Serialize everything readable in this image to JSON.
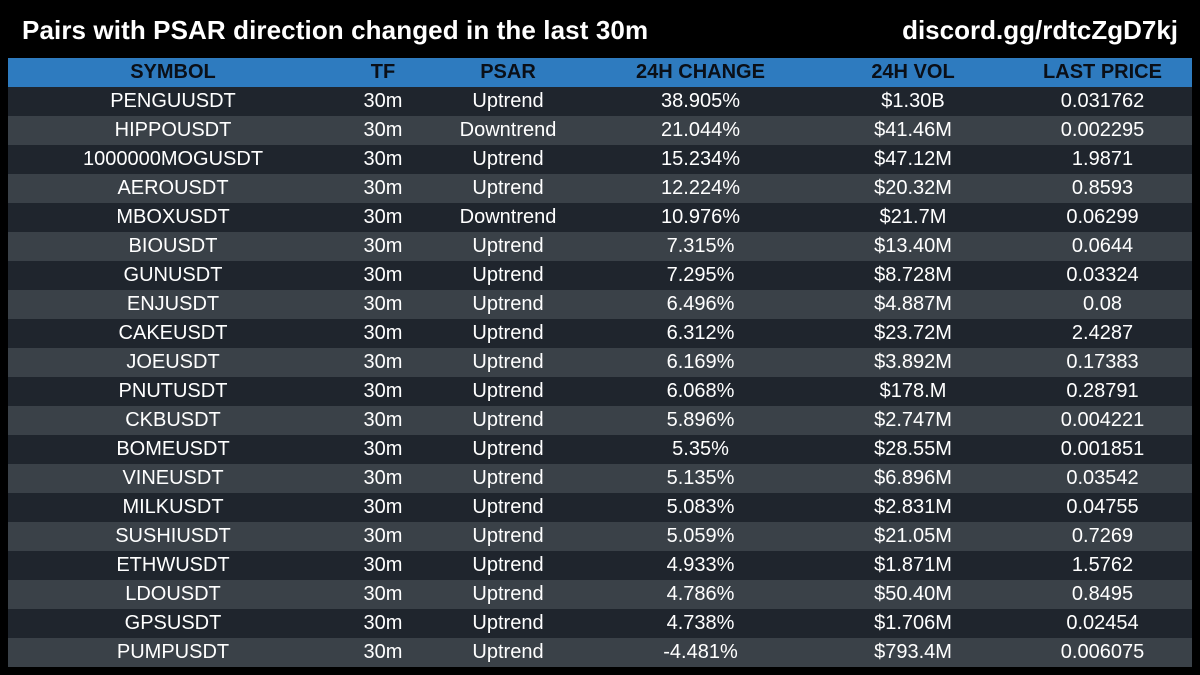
{
  "header": {
    "title": "Pairs with PSAR direction changed in the last 30m",
    "discord": "discord.gg/rdtcZgD7kj"
  },
  "table": {
    "columns": [
      "SYMBOL",
      "TF",
      "PSAR",
      "24H CHANGE",
      "24H VOL",
      "LAST PRICE"
    ],
    "rows": [
      [
        "PENGUUSDT",
        "30m",
        "Uptrend",
        "38.905%",
        "$1.30B",
        "0.031762"
      ],
      [
        "HIPPOUSDT",
        "30m",
        "Downtrend",
        "21.044%",
        "$41.46M",
        "0.002295"
      ],
      [
        "1000000MOGUSDT",
        "30m",
        "Uptrend",
        "15.234%",
        "$47.12M",
        "1.9871"
      ],
      [
        "AEROUSDT",
        "30m",
        "Uptrend",
        "12.224%",
        "$20.32M",
        "0.8593"
      ],
      [
        "MBOXUSDT",
        "30m",
        "Downtrend",
        "10.976%",
        "$21.7M",
        "0.06299"
      ],
      [
        "BIOUSDT",
        "30m",
        "Uptrend",
        "7.315%",
        "$13.40M",
        "0.0644"
      ],
      [
        "GUNUSDT",
        "30m",
        "Uptrend",
        "7.295%",
        "$8.728M",
        "0.03324"
      ],
      [
        "ENJUSDT",
        "30m",
        "Uptrend",
        "6.496%",
        "$4.887M",
        "0.08"
      ],
      [
        "CAKEUSDT",
        "30m",
        "Uptrend",
        "6.312%",
        "$23.72M",
        "2.4287"
      ],
      [
        "JOEUSDT",
        "30m",
        "Uptrend",
        "6.169%",
        "$3.892M",
        "0.17383"
      ],
      [
        "PNUTUSDT",
        "30m",
        "Uptrend",
        "6.068%",
        "$178.M",
        "0.28791"
      ],
      [
        "CKBUSDT",
        "30m",
        "Uptrend",
        "5.896%",
        "$2.747M",
        "0.004221"
      ],
      [
        "BOMEUSDT",
        "30m",
        "Uptrend",
        "5.35%",
        "$28.55M",
        "0.001851"
      ],
      [
        "VINEUSDT",
        "30m",
        "Uptrend",
        "5.135%",
        "$6.896M",
        "0.03542"
      ],
      [
        "MILKUSDT",
        "30m",
        "Uptrend",
        "5.083%",
        "$2.831M",
        "0.04755"
      ],
      [
        "SUSHIUSDT",
        "30m",
        "Uptrend",
        "5.059%",
        "$21.05M",
        "0.7269"
      ],
      [
        "ETHWUSDT",
        "30m",
        "Uptrend",
        "4.933%",
        "$1.871M",
        "1.5762"
      ],
      [
        "LDOUSDT",
        "30m",
        "Uptrend",
        "4.786%",
        "$50.40M",
        "0.8495"
      ],
      [
        "GPSUSDT",
        "30m",
        "Uptrend",
        "4.738%",
        "$1.706M",
        "0.02454"
      ],
      [
        "PUMPUSDT",
        "30m",
        "Uptrend",
        "-4.481%",
        "$793.4M",
        "0.006075"
      ]
    ]
  },
  "colors": {
    "header_bg": "#2e7bbf",
    "row_dark": "#1f252d",
    "row_light": "#3a4148"
  }
}
